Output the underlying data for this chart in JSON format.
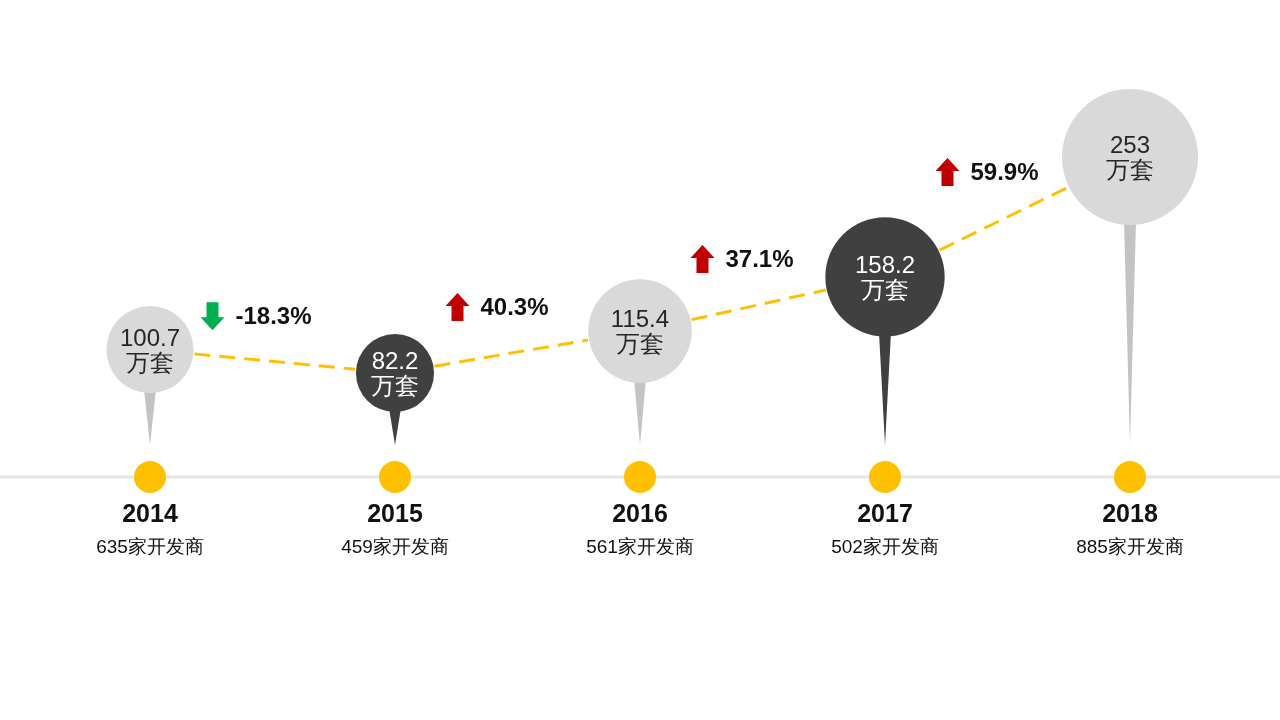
{
  "chart_data": {
    "type": "bubble",
    "categories": [
      "2014",
      "2015",
      "2016",
      "2017",
      "2018"
    ],
    "series": [
      {
        "color": "#ffc000",
        "colors": [
          "#d9d9d9",
          "#404040",
          "#d9d9d9",
          "#404040",
          "#d9d9d9"
        ],
        "values": [
          100.7,
          82.2,
          115.4,
          158.2,
          253
        ],
        "sizes": [
          0.41,
          0.33,
          0.58,
          0.77,
          1
        ],
        "value_labels": [
          "100.7\n万套",
          "82.2\n万套",
          "115.4\n万套",
          "158.2\n万套",
          "253\n万套"
        ]
      }
    ],
    "line_style": "dashed",
    "annotations": [
      "-18.3%",
      "40.3%",
      "37.1%",
      "59.9%",
      "635家开发商",
      "459家开发商",
      "561家开发商",
      "502家开发商",
      "885家开发商"
    ]
  }
}
